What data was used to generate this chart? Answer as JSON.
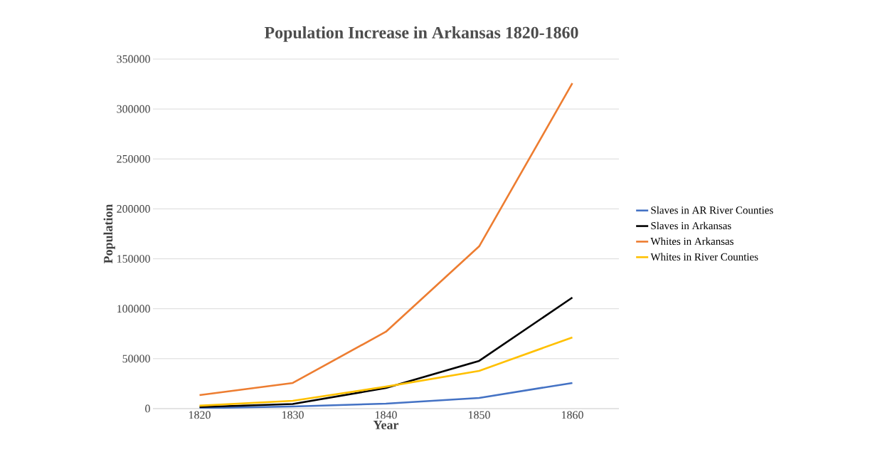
{
  "chart_data": {
    "type": "line",
    "title": "Population Increase in Arkansas 1820-1860",
    "xlabel": "Year",
    "ylabel": "Population",
    "categories": [
      "1820",
      "1830",
      "1840",
      "1850",
      "1860"
    ],
    "series": [
      {
        "name": "Slaves in AR River Counties",
        "color": "#4472c4",
        "values": [
          500,
          2100,
          5000,
          10700,
          25700
        ]
      },
      {
        "name": "Slaves in Arkansas",
        "color": "#000000",
        "values": [
          1600,
          4600,
          20600,
          47800,
          111200
        ]
      },
      {
        "name": "Whites in Arkansas",
        "color": "#ed7d31",
        "values": [
          13500,
          25700,
          77000,
          162500,
          325800
        ]
      },
      {
        "name": "Whites in River Counties",
        "color": "#ffc000",
        "values": [
          2900,
          7800,
          22000,
          37800,
          71300
        ]
      }
    ],
    "ylim": [
      0,
      350000
    ],
    "yticks": [
      0,
      50000,
      100000,
      150000,
      200000,
      250000,
      300000,
      350000
    ],
    "grid": "y",
    "legend": "right",
    "marker": "none",
    "line_style": "solid"
  }
}
